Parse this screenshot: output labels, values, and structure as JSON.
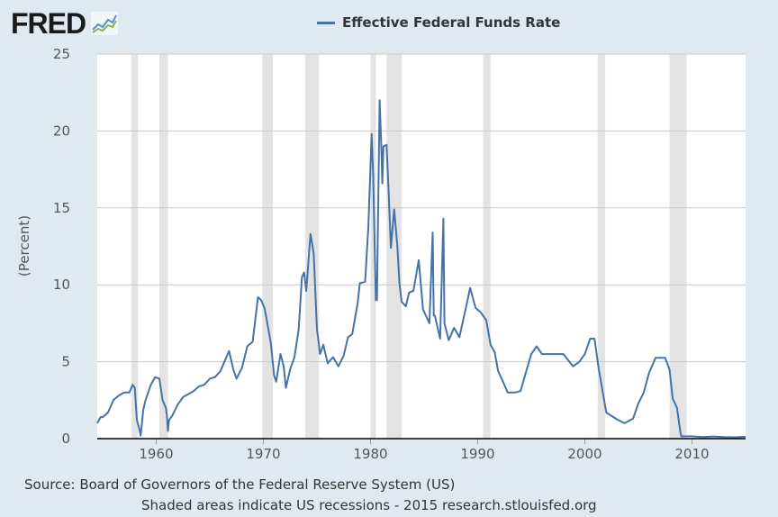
{
  "logo": "FRED",
  "chart_data": {
    "type": "line",
    "title": "",
    "legend": [
      "Effective Federal Funds Rate"
    ],
    "legend_placement": "top-center",
    "xlabel": "",
    "ylabel": "(Percent)",
    "xlim": [
      1954.5,
      2015.0
    ],
    "ylim": [
      0,
      25
    ],
    "yticks": [
      0,
      5,
      10,
      15,
      20,
      25
    ],
    "xticks": [
      1960,
      1970,
      1980,
      1990,
      2000,
      2010
    ],
    "grid": "horizontal",
    "line_color": "#4572a7",
    "recession_color": "#e3e3e3",
    "recessions": [
      [
        1957.7,
        1958.3
      ],
      [
        1960.3,
        1961.1
      ],
      [
        1969.9,
        1970.9
      ],
      [
        1973.9,
        1975.2
      ],
      [
        1980.0,
        1980.5
      ],
      [
        1981.5,
        1982.9
      ],
      [
        1990.5,
        1991.2
      ],
      [
        2001.2,
        2001.9
      ],
      [
        2007.9,
        2009.5
      ]
    ],
    "series": [
      {
        "name": "Effective Federal Funds Rate",
        "x": [
          1954.5,
          1954.8,
          1955.0,
          1955.5,
          1956.0,
          1956.5,
          1957.0,
          1957.5,
          1957.8,
          1958.0,
          1958.2,
          1958.4,
          1958.55,
          1958.8,
          1959.0,
          1959.5,
          1959.9,
          1960.3,
          1960.6,
          1960.9,
          1961.0,
          1961.1,
          1961.2,
          1961.5,
          1962.0,
          1962.5,
          1963.0,
          1963.5,
          1964.0,
          1964.5,
          1965.0,
          1965.5,
          1966.0,
          1966.8,
          1967.2,
          1967.5,
          1968.0,
          1968.5,
          1969.0,
          1969.5,
          1969.8,
          1970.1,
          1970.3,
          1970.7,
          1971.0,
          1971.2,
          1971.6,
          1971.9,
          1972.1,
          1972.5,
          1972.9,
          1973.3,
          1973.6,
          1973.8,
          1974.0,
          1974.4,
          1974.5,
          1974.7,
          1975.0,
          1975.3,
          1975.6,
          1976.0,
          1976.5,
          1977.0,
          1977.5,
          1977.9,
          1978.3,
          1978.8,
          1979.0,
          1979.5,
          1979.8,
          1980.1,
          1980.25,
          1980.5,
          1980.6,
          1980.85,
          1981.0,
          1981.1,
          1981.2,
          1981.5,
          1981.7,
          1981.9,
          1982.2,
          1982.5,
          1982.7,
          1982.9,
          1983.3,
          1983.6,
          1984.0,
          1984.5,
          1984.9,
          1985.5,
          1985.8,
          1985.9,
          1986.0,
          1986.5,
          1986.8,
          1986.9,
          1987.3,
          1987.8,
          1988.3,
          1988.9,
          1989.3,
          1989.8,
          1990.3,
          1990.8,
          1991.2,
          1991.6,
          1991.9,
          1992.3,
          1992.8,
          1993.5,
          1994.0,
          1994.5,
          1995.0,
          1995.5,
          1996.0,
          1997.0,
          1998.0,
          1998.9,
          1999.5,
          2000.0,
          2000.5,
          2000.9,
          2001.3,
          2001.8,
          2002.0,
          2003.0,
          2003.7,
          2004.5,
          2005.0,
          2005.5,
          2006.0,
          2006.6,
          2007.5,
          2007.9,
          2008.2,
          2008.6,
          2008.9,
          2009.0,
          2010.0,
          2011.0,
          2012.0,
          2013.0,
          2014.0,
          2015.0
        ],
        "y": [
          1.0,
          1.4,
          1.4,
          1.7,
          2.5,
          2.8,
          3.0,
          3.0,
          3.5,
          3.3,
          1.2,
          0.7,
          0.2,
          1.9,
          2.5,
          3.5,
          4.0,
          3.9,
          2.5,
          2.0,
          1.5,
          0.5,
          1.2,
          1.5,
          2.2,
          2.7,
          2.9,
          3.1,
          3.4,
          3.5,
          3.9,
          4.0,
          4.4,
          5.7,
          4.5,
          3.9,
          4.6,
          6.0,
          6.3,
          9.2,
          9.0,
          8.5,
          7.8,
          6.2,
          4.1,
          3.7,
          5.5,
          4.7,
          3.3,
          4.5,
          5.3,
          7.1,
          10.5,
          10.8,
          9.6,
          13.3,
          12.9,
          12.0,
          7.1,
          5.5,
          6.1,
          4.9,
          5.3,
          4.7,
          5.4,
          6.6,
          6.8,
          8.8,
          10.1,
          10.2,
          13.8,
          19.8,
          17.2,
          9.0,
          9.0,
          22.0,
          19.1,
          16.6,
          19.0,
          19.1,
          15.9,
          12.4,
          14.9,
          12.6,
          10.1,
          8.9,
          8.6,
          9.5,
          9.6,
          11.6,
          8.4,
          7.5,
          13.4,
          8.0,
          8.0,
          6.5,
          14.3,
          7.5,
          6.4,
          7.2,
          6.6,
          8.5,
          9.8,
          8.5,
          8.2,
          7.7,
          6.1,
          5.6,
          4.4,
          3.8,
          3.0,
          3.0,
          3.1,
          4.3,
          5.5,
          6.0,
          5.5,
          5.5,
          5.5,
          4.7,
          5.0,
          5.5,
          6.5,
          6.5,
          4.5,
          2.5,
          1.7,
          1.25,
          1.0,
          1.3,
          2.3,
          3.0,
          4.3,
          5.25,
          5.25,
          4.5,
          2.6,
          2.0,
          0.5,
          0.15,
          0.15,
          0.1,
          0.14,
          0.1,
          0.09,
          0.12
        ]
      }
    ]
  },
  "footer": {
    "source": "Source: Board of Governors of the Federal Reserve System (US)",
    "note": "Shaded areas indicate US recessions - 2015 research.stlouisfed.org"
  }
}
